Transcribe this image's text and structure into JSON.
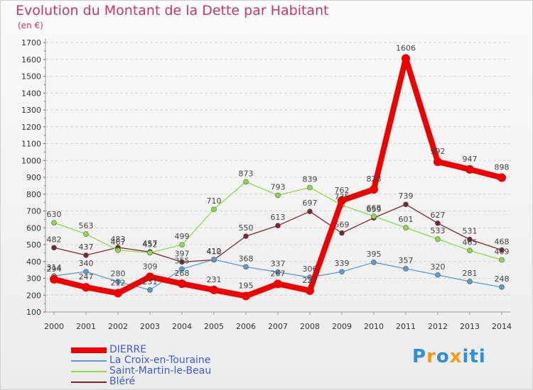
{
  "header": {
    "title": "Evolution du Montant de la Dette par Habitant",
    "subtitle": "(en €)"
  },
  "chart_data": {
    "type": "line",
    "title": "Evolution du Montant de la Dette par Habitant",
    "subtitle": "(en €)",
    "xlabel": "",
    "ylabel": "",
    "x": [
      "2000",
      "2001",
      "2002",
      "2003",
      "2004",
      "2005",
      "2006",
      "2007",
      "2008",
      "2009",
      "2010",
      "2011",
      "2012",
      "2013",
      "2014"
    ],
    "yticks": [
      100,
      200,
      300,
      400,
      500,
      600,
      700,
      800,
      900,
      1000,
      1100,
      1200,
      1300,
      1400,
      1500,
      1600,
      1700
    ],
    "ylim": [
      100,
      1700
    ],
    "grid": "horizontal",
    "legend_position": "bottom-left",
    "series": [
      {
        "name": "DIERRE",
        "color": "#ee0000",
        "width": 8,
        "marker": 6,
        "values": [
          294,
          247,
          212,
          309,
          268,
          231,
          195,
          267,
          227,
          762,
          828,
          1606,
          992,
          947,
          898
        ]
      },
      {
        "name": "La Croix-en-Touraine",
        "color": "#5a9bd0",
        "width": 1.3,
        "marker": 3.5,
        "values": [
          314,
          340,
          280,
          231,
          355,
          412,
          368,
          337,
          306,
          339,
          395,
          357,
          320,
          281,
          248
        ]
      },
      {
        "name": "Saint-Martin-le-Beau",
        "color": "#88dd44",
        "width": 1.3,
        "marker": 3.5,
        "values": [
          630,
          563,
          467,
          452,
          499,
          710,
          873,
          793,
          839,
          735,
          668,
          601,
          533,
          465,
          409
        ]
      },
      {
        "name": "Bléré",
        "color": "#7a2828",
        "width": 1.3,
        "marker": 3.5,
        "values": [
          482,
          437,
          483,
          457,
          397,
          410,
          550,
          613,
          697,
          569,
          659,
          739,
          627,
          531,
          468
        ]
      }
    ]
  },
  "logo": {
    "text": "Proxiti",
    "letters": [
      "P",
      "r",
      "o",
      "x",
      "i",
      "t",
      "i"
    ],
    "colors": [
      "#2c8fe0",
      "#f39c12",
      "#2c8fe0",
      "#f39c12",
      "#2c8fe0",
      "#2c8fe0",
      "#2c8fe0"
    ]
  }
}
